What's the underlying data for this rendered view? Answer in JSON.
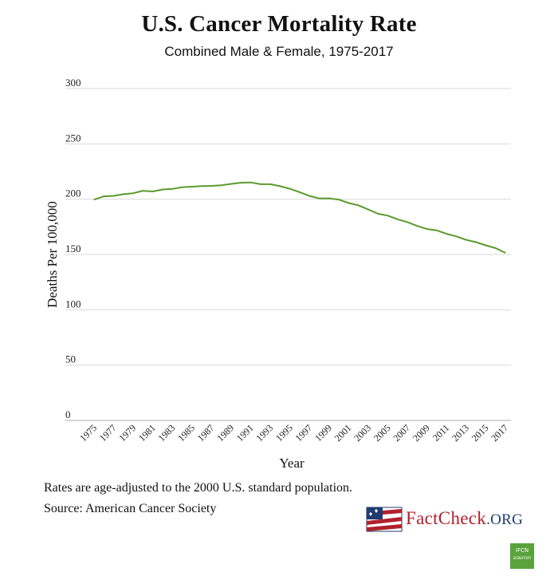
{
  "chart_data": {
    "type": "line",
    "title": "U.S. Cancer Mortality Rate",
    "subtitle": "Combined Male & Female, 1975-2017",
    "xlabel": "Year",
    "ylabel": "Deaths Per 100,000",
    "ylim": [
      0,
      300
    ],
    "yticks": [
      0,
      50,
      100,
      150,
      200,
      250,
      300
    ],
    "xlim": [
      1975,
      2017
    ],
    "xtick_labels": [
      "1975",
      "1977",
      "1979",
      "1981",
      "1983",
      "1985",
      "1987",
      "1989",
      "1991",
      "1993",
      "1995",
      "1997",
      "1999",
      "2001",
      "2003",
      "2005",
      "2007",
      "2009",
      "2011",
      "2013",
      "2015",
      "2017"
    ],
    "grid": "horizontal",
    "series": [
      {
        "color": "#5a9a2e",
        "x": [
          1975,
          1976,
          1977,
          1978,
          1979,
          1980,
          1981,
          1982,
          1983,
          1984,
          1985,
          1986,
          1987,
          1988,
          1989,
          1990,
          1991,
          1992,
          1993,
          1994,
          1995,
          1996,
          1997,
          1998,
          1999,
          2000,
          2001,
          2002,
          2003,
          2004,
          2005,
          2006,
          2007,
          2008,
          2009,
          2010,
          2011,
          2012,
          2013,
          2014,
          2015,
          2016,
          2017
        ],
        "values": [
          199.6,
          202.6,
          203.0,
          204.5,
          205.4,
          207.6,
          207.0,
          208.8,
          209.3,
          210.9,
          211.3,
          211.9,
          212.0,
          212.5,
          213.8,
          214.9,
          215.1,
          213.5,
          213.5,
          211.7,
          209.4,
          206.3,
          202.9,
          200.7,
          200.8,
          199.6,
          196.5,
          194.4,
          190.7,
          186.8,
          185.1,
          181.8,
          179.3,
          175.8,
          173.0,
          171.8,
          168.7,
          166.4,
          163.2,
          161.2,
          158.3,
          155.8,
          151.5
        ]
      }
    ]
  },
  "notes": {
    "line1": "Rates are age-adjusted to the 2000 U.S. standard population.",
    "line2": "Source: American Cancer Society"
  },
  "logo": {
    "name": "FactCheck",
    "suffix": ".ORG",
    "flag_icon": "american-flag-icon"
  },
  "badge": {
    "line1": "IFCN",
    "line2": "SIGNATORY",
    "icon": "ifcn-signatory-badge-icon"
  }
}
